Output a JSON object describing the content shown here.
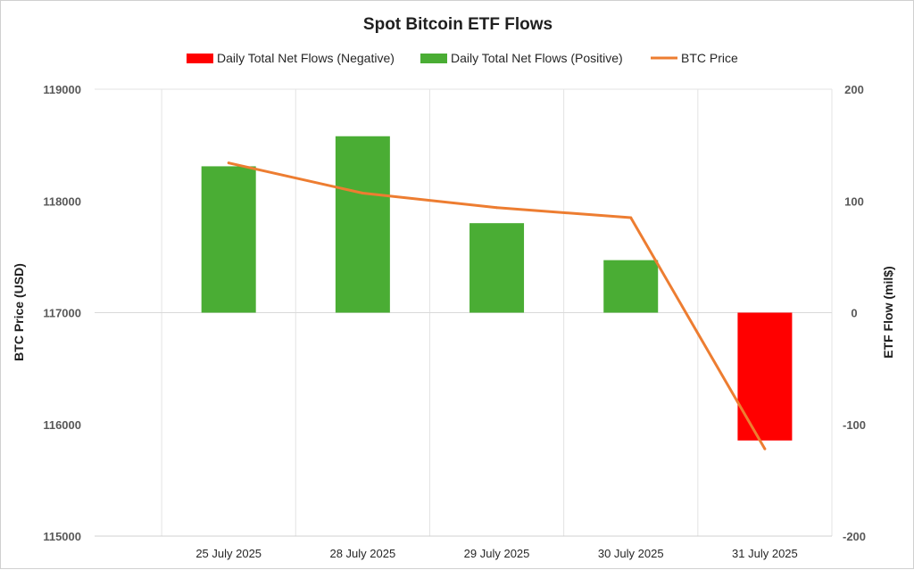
{
  "chart_data": {
    "type": "bar",
    "title": "Spot Bitcoin ETF Flows",
    "categories": [
      "25 July 2025",
      "28 July 2025",
      "29 July 2025",
      "30 July 2025",
      "31 July 2025"
    ],
    "series": [
      {
        "name": "Daily Total Net Flows (Negative)",
        "type": "bar",
        "axis": "right",
        "color": "#ff0000",
        "values": [
          0,
          0,
          0,
          0,
          -114.4
        ]
      },
      {
        "name": "Daily Total Net Flows (Positive)",
        "type": "bar",
        "axis": "right",
        "color": "#4aad34",
        "values": [
          131.0,
          157.9,
          80.1,
          47.0,
          0
        ]
      },
      {
        "name": "BTC Price",
        "type": "line",
        "axis": "left",
        "color": "#ed7d31",
        "values": [
          118340,
          118070,
          117940,
          117850,
          115780
        ]
      }
    ],
    "ylabel": "BTC Price (USD)",
    "y2label": "ETF Flow (mil$)",
    "ylim": [
      115000,
      119000
    ],
    "y2lim": [
      -200,
      200
    ],
    "yticks": [
      "115000",
      "116000",
      "117000",
      "118000",
      "119000"
    ],
    "y2ticks": [
      "-200",
      "-100",
      "0",
      "100",
      "200"
    ],
    "grid": "vertical",
    "legend": "top-center"
  }
}
